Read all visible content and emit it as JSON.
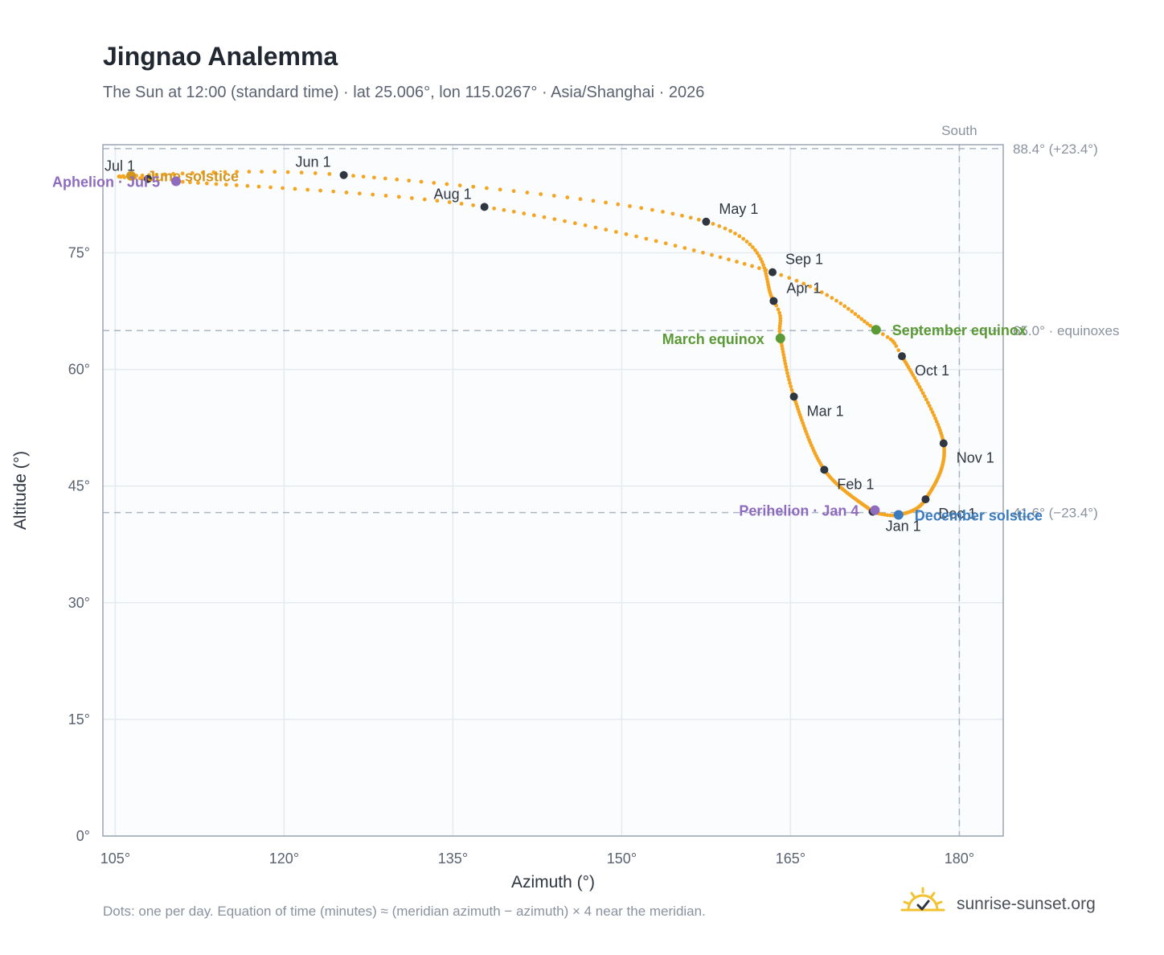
{
  "title": "Jingnao Analemma",
  "subtitle": "The Sun at 12:00 (standard time) · lat 25.006°, lon 115.0267° · Asia/Shanghai · 2026",
  "footnote": "Dots: one per day. Equation of time (minutes) ≈ (meridian azimuth − azimuth) × 4 near the meridian.",
  "brand": {
    "name": "sunrise-sunset.org",
    "icon": "sun-logo-icon"
  },
  "colors": {
    "analemma": "#f4a623",
    "month_marker": "#2f3640",
    "june_solstice": "#d4951c",
    "december_solstice": "#3b7bbf",
    "equinox": "#5b9a35",
    "apsis": "#8e6bbf",
    "reference_line": "#aab6c2",
    "plot_background": "#fafcfe",
    "grid": "#e6eaef"
  },
  "chart_data": {
    "type": "scatter",
    "xlabel": "Azimuth (°)",
    "ylabel": "Altitude (°)",
    "xlim": [
      103.9,
      183.9
    ],
    "ylim": [
      0,
      88.9
    ],
    "x_ticks": [
      105,
      120,
      135,
      150,
      165,
      180
    ],
    "x_tick_labels": [
      "105°",
      "120°",
      "135°",
      "150°",
      "165°",
      "180°"
    ],
    "y_ticks": [
      0,
      15,
      30,
      45,
      60,
      75
    ],
    "y_tick_labels": [
      "0°",
      "15°",
      "30°",
      "45°",
      "60°",
      "75°"
    ],
    "grid": true,
    "legend": "none",
    "path_anchors": [
      {
        "day": 1,
        "az": 172.3,
        "alt": 41.7
      },
      {
        "day": 32,
        "az": 168.0,
        "alt": 47.1
      },
      {
        "day": 60,
        "az": 165.3,
        "alt": 56.5
      },
      {
        "day": 79,
        "az": 164.1,
        "alt": 64.0
      },
      {
        "day": 91,
        "az": 163.5,
        "alt": 68.8
      },
      {
        "day": 121,
        "az": 157.5,
        "alt": 79.0
      },
      {
        "day": 152,
        "az": 125.3,
        "alt": 85.0
      },
      {
        "day": 172,
        "az": 106.4,
        "alt": 84.9
      },
      {
        "day": 182,
        "az": 107.9,
        "alt": 84.5
      },
      {
        "day": 186,
        "az": 110.4,
        "alt": 84.2
      },
      {
        "day": 213,
        "az": 137.8,
        "alt": 80.9
      },
      {
        "day": 244,
        "az": 163.4,
        "alt": 72.5
      },
      {
        "day": 266,
        "az": 172.6,
        "alt": 65.1
      },
      {
        "day": 274,
        "az": 174.9,
        "alt": 61.7
      },
      {
        "day": 305,
        "az": 178.6,
        "alt": 50.5
      },
      {
        "day": 335,
        "az": 177.0,
        "alt": 43.3
      },
      {
        "day": 355,
        "az": 174.6,
        "alt": 41.3
      },
      {
        "day": 365,
        "az": 172.4,
        "alt": 41.6
      }
    ],
    "month_markers": [
      {
        "label": "Jan 1",
        "az": 172.3,
        "alt": 41.7,
        "anchor": "below-right"
      },
      {
        "label": "Feb 1",
        "az": 168.0,
        "alt": 47.1,
        "anchor": "below-right"
      },
      {
        "label": "Mar 1",
        "az": 165.3,
        "alt": 56.5,
        "anchor": "below-right"
      },
      {
        "label": "Apr 1",
        "az": 163.5,
        "alt": 68.8,
        "anchor": "above-right"
      },
      {
        "label": "May 1",
        "az": 157.5,
        "alt": 79.0,
        "anchor": "above-right"
      },
      {
        "label": "Jun 1",
        "az": 125.3,
        "alt": 85.0,
        "anchor": "above-left"
      },
      {
        "label": "Jul 1",
        "az": 107.9,
        "alt": 84.5,
        "anchor": "above-left"
      },
      {
        "label": "Aug 1",
        "az": 137.8,
        "alt": 80.9,
        "anchor": "above-left"
      },
      {
        "label": "Sep 1",
        "az": 163.4,
        "alt": 72.5,
        "anchor": "above-right"
      },
      {
        "label": "Oct 1",
        "az": 174.9,
        "alt": 61.7,
        "anchor": "below-right"
      },
      {
        "label": "Nov 1",
        "az": 178.6,
        "alt": 50.5,
        "anchor": "below-right"
      },
      {
        "label": "Dec 1",
        "az": 177.0,
        "alt": 43.3,
        "anchor": "below-right"
      }
    ],
    "events": [
      {
        "label": "June solstice",
        "az": 106.4,
        "alt": 84.9,
        "color_key": "june_solstice",
        "anchor": "right"
      },
      {
        "label": "Aphelion · Jul 5",
        "az": 110.4,
        "alt": 84.2,
        "color_key": "apsis",
        "anchor": "left"
      },
      {
        "label": "March equinox",
        "az": 164.1,
        "alt": 64.0,
        "color_key": "equinox",
        "anchor": "left"
      },
      {
        "label": "September equinox",
        "az": 172.6,
        "alt": 65.1,
        "color_key": "equinox",
        "anchor": "right"
      },
      {
        "label": "Perihelion · Jan 4",
        "az": 172.5,
        "alt": 41.9,
        "color_key": "apsis",
        "anchor": "left"
      },
      {
        "label": "December solstice",
        "az": 174.6,
        "alt": 41.3,
        "color_key": "december_solstice",
        "anchor": "right"
      }
    ],
    "reference_lines": [
      {
        "axis": "y",
        "value": 88.4,
        "label": "88.4° (+23.4°)"
      },
      {
        "axis": "y",
        "value": 65.0,
        "label": "65.0° · equinoxes"
      },
      {
        "axis": "y",
        "value": 41.6,
        "label": "41.6° (−23.4°)"
      },
      {
        "axis": "x",
        "value": 180,
        "label": "South"
      }
    ]
  }
}
